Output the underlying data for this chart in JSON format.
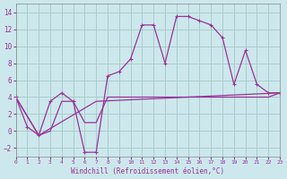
{
  "xlabel": "Windchill (Refroidissement éolien,°C)",
  "bg_color": "#cce8ec",
  "grid_color": "#aacccc",
  "line_color": "#993399",
  "xlim": [
    0,
    23
  ],
  "ylim": [
    -3,
    15
  ],
  "xticks": [
    0,
    1,
    2,
    3,
    4,
    5,
    6,
    7,
    8,
    9,
    10,
    11,
    12,
    13,
    14,
    15,
    16,
    17,
    18,
    19,
    20,
    21,
    22,
    23
  ],
  "yticks": [
    -2,
    0,
    2,
    4,
    6,
    8,
    10,
    12,
    14
  ],
  "line1_x": [
    0,
    1,
    2,
    3,
    4,
    5,
    6,
    7,
    8,
    9,
    10,
    11,
    12,
    13,
    14,
    15,
    16,
    17,
    18,
    19,
    20,
    21,
    22,
    23
  ],
  "line1_y": [
    4,
    0.5,
    -0.5,
    3.5,
    4.5,
    3.5,
    -2.5,
    -2.5,
    6.5,
    7,
    8.5,
    12.5,
    12.5,
    8,
    13.5,
    13.5,
    13,
    12.5,
    11,
    5.5,
    9.5,
    5.5,
    4.5,
    4.5
  ],
  "line2_x": [
    0,
    2,
    3,
    4,
    5,
    6,
    7,
    8,
    9,
    10,
    11,
    12,
    13,
    14,
    15,
    16,
    17,
    18,
    19,
    20,
    21,
    22,
    23
  ],
  "line2_y": [
    4,
    -0.5,
    0,
    3.5,
    3.5,
    1,
    1,
    4,
    4,
    4,
    4,
    4,
    4,
    4,
    4,
    4,
    4,
    4,
    4,
    4,
    4,
    4,
    4.5
  ],
  "line3_x": [
    0,
    2,
    7,
    23
  ],
  "line3_y": [
    4,
    -0.5,
    3.5,
    4.5
  ]
}
